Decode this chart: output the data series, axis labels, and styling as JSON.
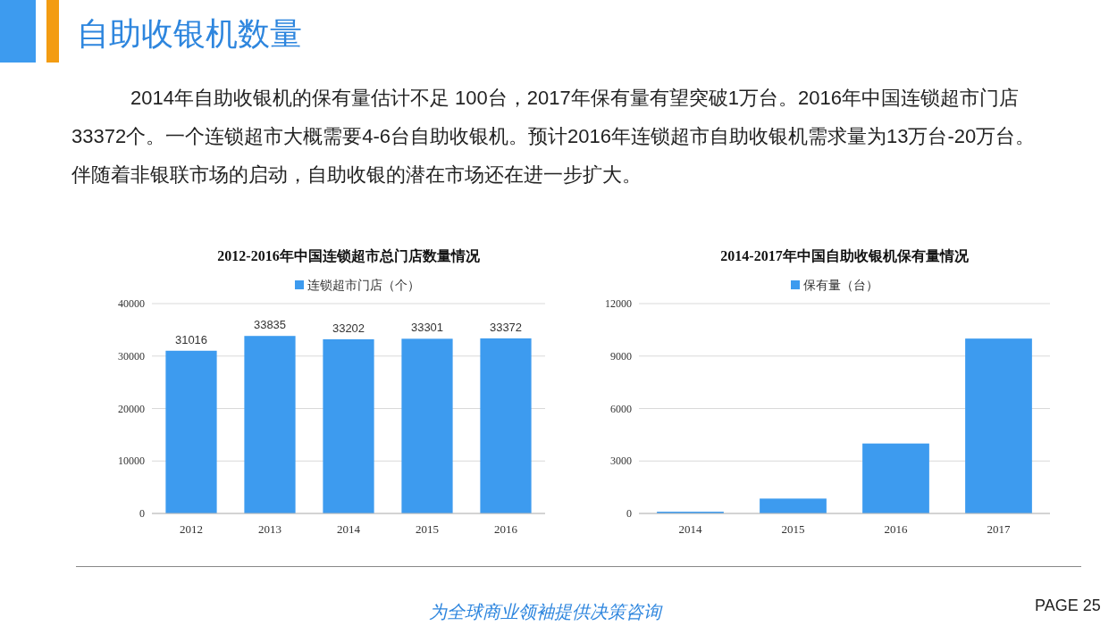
{
  "chart_data": [
    {
      "type": "other",
      "title": "自助收银机数量",
      "annotations": [
        "2014年自助收银机的保有量估计不足 100台，2017年保有量有望突破1万台。2016年中国连锁超市门店33372个。一个连锁超市大概需要4-6台自助收银机。预计2016年连锁超市自助收银机需求量为13万台-20万台。伴随着非银联市场的启动，自助收银的潜在市场还在进一步扩大。",
        "为全球商业领袖提供决策咨询",
        "PAGE  25"
      ]
    },
    {
      "type": "bar",
      "title": "2012-2016年中国连锁超市总门店数量情况",
      "categories": [
        "2012",
        "2013",
        "2014",
        "2015",
        "2016"
      ],
      "series": [
        {
          "name": "连锁超市门店（个）",
          "color": "#3d9bef",
          "values": [
            31016,
            33835,
            33202,
            33301,
            33372
          ]
        }
      ],
      "ylim": [
        0,
        40000
      ],
      "yticks": [
        0,
        10000,
        20000,
        30000,
        40000
      ],
      "grid": "y",
      "legend": "top",
      "data_labels": true
    },
    {
      "type": "bar",
      "title": "2014-2017年中国自助收银机保有量情况",
      "categories": [
        "2014",
        "2015",
        "2016",
        "2017"
      ],
      "series": [
        {
          "name": "保有量（台）",
          "color": "#3d9bef",
          "values": [
            100,
            850,
            4000,
            10000
          ]
        }
      ],
      "ylim": [
        0,
        12000
      ],
      "yticks": [
        0,
        3000,
        6000,
        9000,
        12000
      ],
      "grid": "y",
      "legend": "top"
    }
  ]
}
